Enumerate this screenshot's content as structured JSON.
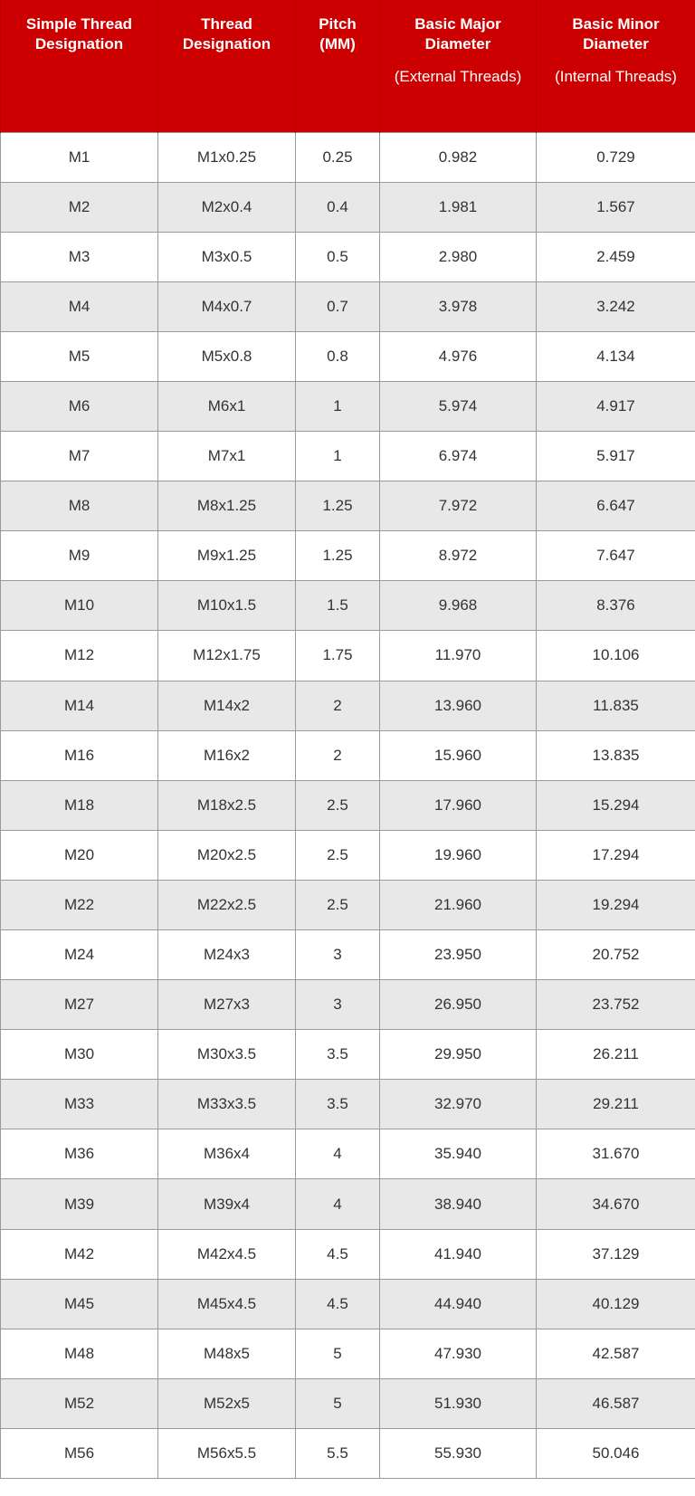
{
  "colors": {
    "header_bg": "#cc0000",
    "alt_row_bg": "#e8e8e8"
  },
  "headers": [
    {
      "title": "Simple Thread Designation",
      "sub": ""
    },
    {
      "title": "Thread Designation",
      "sub": ""
    },
    {
      "title": "Pitch (MM)",
      "sub": ""
    },
    {
      "title": "Basic Major Diameter",
      "sub": "(External Threads)"
    },
    {
      "title": "Basic Minor Diameter",
      "sub": "(Internal Threads)"
    }
  ],
  "rows": [
    [
      "M1",
      "M1x0.25",
      "0.25",
      "0.982",
      "0.729"
    ],
    [
      "M2",
      "M2x0.4",
      "0.4",
      "1.981",
      "1.567"
    ],
    [
      "M3",
      "M3x0.5",
      "0.5",
      "2.980",
      "2.459"
    ],
    [
      "M4",
      "M4x0.7",
      "0.7",
      "3.978",
      "3.242"
    ],
    [
      "M5",
      "M5x0.8",
      "0.8",
      "4.976",
      "4.134"
    ],
    [
      "M6",
      "M6x1",
      "1",
      "5.974",
      "4.917"
    ],
    [
      "M7",
      "M7x1",
      "1",
      "6.974",
      "5.917"
    ],
    [
      "M8",
      "M8x1.25",
      "1.25",
      "7.972",
      "6.647"
    ],
    [
      "M9",
      "M9x1.25",
      "1.25",
      "8.972",
      "7.647"
    ],
    [
      "M10",
      "M10x1.5",
      "1.5",
      "9.968",
      "8.376"
    ],
    [
      "M12",
      "M12x1.75",
      "1.75",
      "11.970",
      "10.106"
    ],
    [
      "M14",
      "M14x2",
      "2",
      "13.960",
      "11.835"
    ],
    [
      "M16",
      "M16x2",
      "2",
      "15.960",
      "13.835"
    ],
    [
      "M18",
      "M18x2.5",
      "2.5",
      "17.960",
      "15.294"
    ],
    [
      "M20",
      "M20x2.5",
      "2.5",
      "19.960",
      "17.294"
    ],
    [
      "M22",
      "M22x2.5",
      "2.5",
      "21.960",
      "19.294"
    ],
    [
      "M24",
      "M24x3",
      "3",
      "23.950",
      "20.752"
    ],
    [
      "M27",
      "M27x3",
      "3",
      "26.950",
      "23.752"
    ],
    [
      "M30",
      "M30x3.5",
      "3.5",
      "29.950",
      "26.211"
    ],
    [
      "M33",
      "M33x3.5",
      "3.5",
      "32.970",
      "29.211"
    ],
    [
      "M36",
      "M36x4",
      "4",
      "35.940",
      "31.670"
    ],
    [
      "M39",
      "M39x4",
      "4",
      "38.940",
      "34.670"
    ],
    [
      "M42",
      "M42x4.5",
      "4.5",
      "41.940",
      "37.129"
    ],
    [
      "M45",
      "M45x4.5",
      "4.5",
      "44.940",
      "40.129"
    ],
    [
      "M48",
      "M48x5",
      "5",
      "47.930",
      "42.587"
    ],
    [
      "M52",
      "M52x5",
      "5",
      "51.930",
      "46.587"
    ],
    [
      "M56",
      "M56x5.5",
      "5.5",
      "55.930",
      "50.046"
    ]
  ]
}
